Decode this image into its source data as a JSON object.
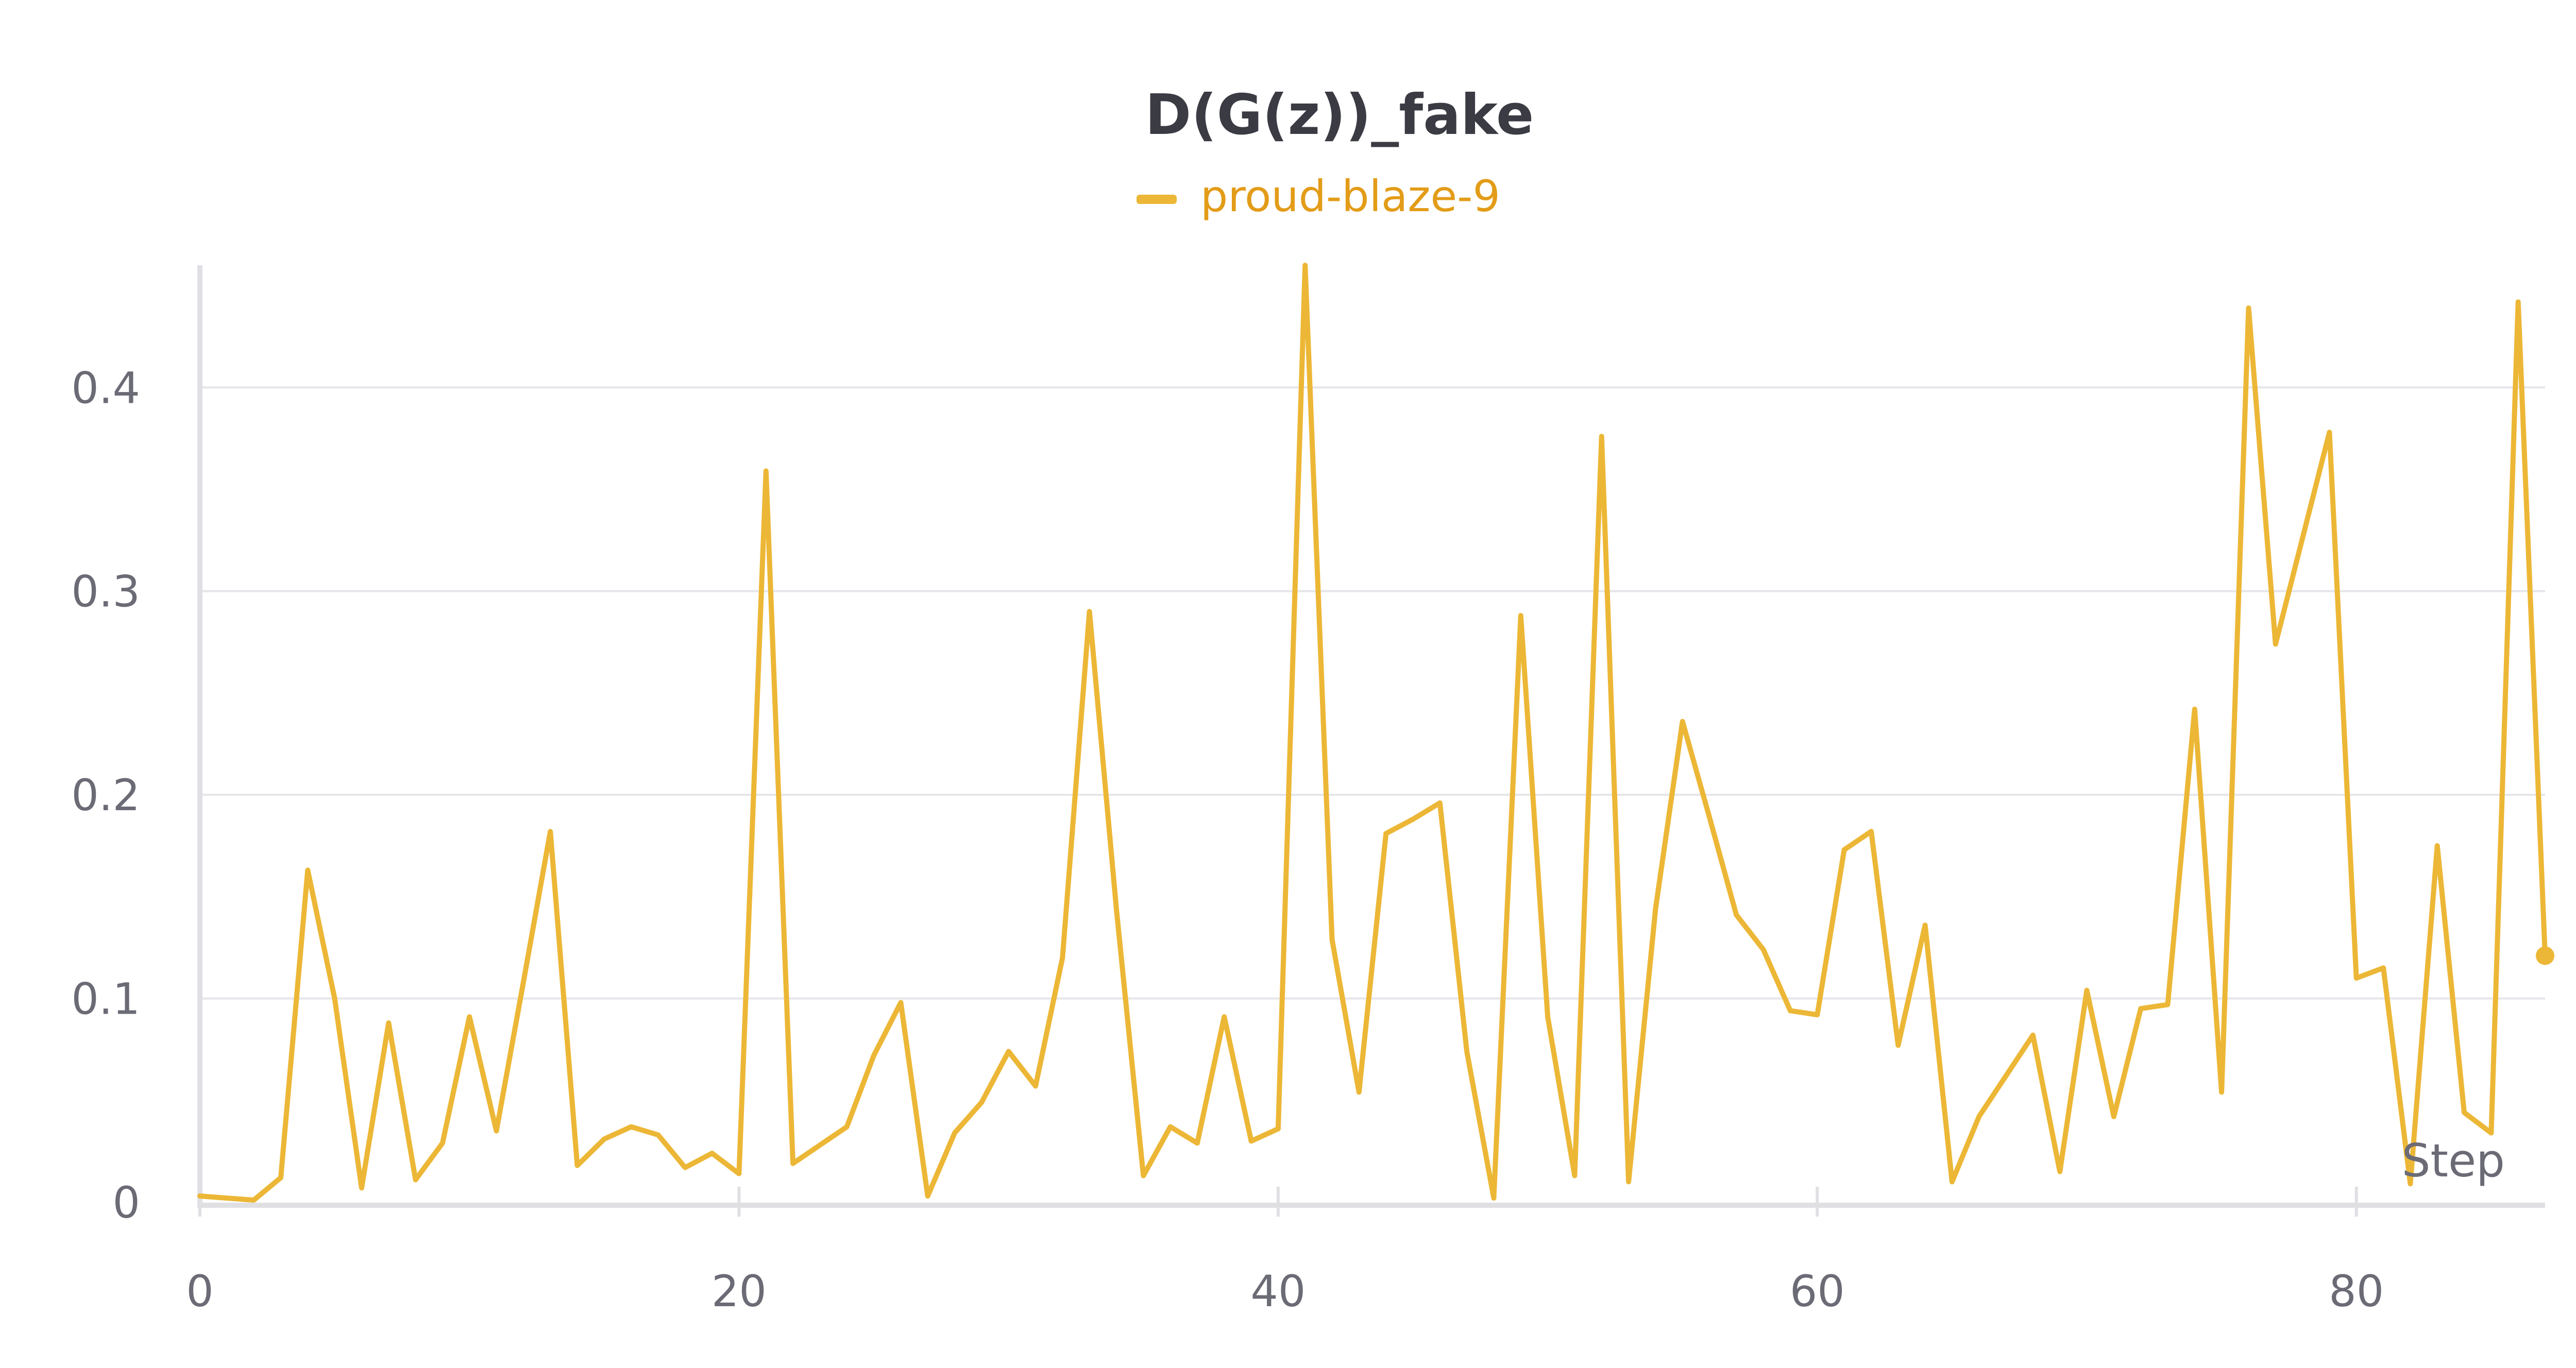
{
  "chart_data": {
    "type": "line",
    "title": "D(G(z))_fake",
    "xlabel": "Step",
    "ylabel": "",
    "xlim": [
      0,
      87
    ],
    "ylim": [
      0,
      0.46
    ],
    "x_ticks": [
      0,
      20,
      40,
      60,
      80
    ],
    "y_ticks": [
      0,
      0.1,
      0.2,
      0.3,
      0.4
    ],
    "x_tick_labels": [
      "0",
      "20",
      "40",
      "60",
      "80"
    ],
    "y_tick_labels": [
      "0",
      "0.1",
      "0.2",
      "0.3",
      "0.4"
    ],
    "grid": "horizontal",
    "legend_position": "top-center",
    "series": [
      {
        "name": "proud-blaze-9",
        "color": "#ecb736",
        "legend_text_color": "#e39c18",
        "x": [
          0,
          1,
          2,
          3,
          4,
          5,
          6,
          7,
          8,
          9,
          10,
          11,
          12,
          13,
          14,
          15,
          16,
          17,
          18,
          19,
          20,
          21,
          22,
          23,
          24,
          25,
          26,
          27,
          28,
          29,
          30,
          31,
          32,
          33,
          34,
          35,
          36,
          37,
          38,
          39,
          40,
          41,
          42,
          43,
          44,
          45,
          46,
          47,
          48,
          49,
          50,
          51,
          52,
          53,
          54,
          55,
          56,
          57,
          58,
          59,
          60,
          61,
          62,
          63,
          64,
          65,
          66,
          67,
          68,
          69,
          70,
          71,
          72,
          73,
          74,
          75,
          76,
          77,
          78,
          79,
          80,
          81,
          82,
          83,
          84,
          85,
          86,
          87
        ],
        "y": [
          0.003,
          0.002,
          0.001,
          0.012,
          0.163,
          0.1,
          0.007,
          0.088,
          0.011,
          0.029,
          0.091,
          0.035,
          0.108,
          0.182,
          0.018,
          0.031,
          0.037,
          0.033,
          0.017,
          0.024,
          0.014,
          0.359,
          0.019,
          0.028,
          0.037,
          0.072,
          0.098,
          0.003,
          0.034,
          0.049,
          0.074,
          0.057,
          0.12,
          0.29,
          0.144,
          0.013,
          0.037,
          0.029,
          0.091,
          0.03,
          0.036,
          0.46,
          0.129,
          0.054,
          0.181,
          0.188,
          0.196,
          0.074,
          0.002,
          0.288,
          0.091,
          0.013,
          0.376,
          0.01,
          0.144,
          0.236,
          0.189,
          0.141,
          0.124,
          0.094,
          0.092,
          0.173,
          0.182,
          0.077,
          0.136,
          0.01,
          0.042,
          0.062,
          0.082,
          0.015,
          0.104,
          0.042,
          0.095,
          0.097,
          0.242,
          0.054,
          0.439,
          0.274,
          0.326,
          0.378,
          0.11,
          0.115,
          0.009,
          0.175,
          0.044,
          0.034,
          0.442,
          0.121
        ]
      }
    ]
  }
}
